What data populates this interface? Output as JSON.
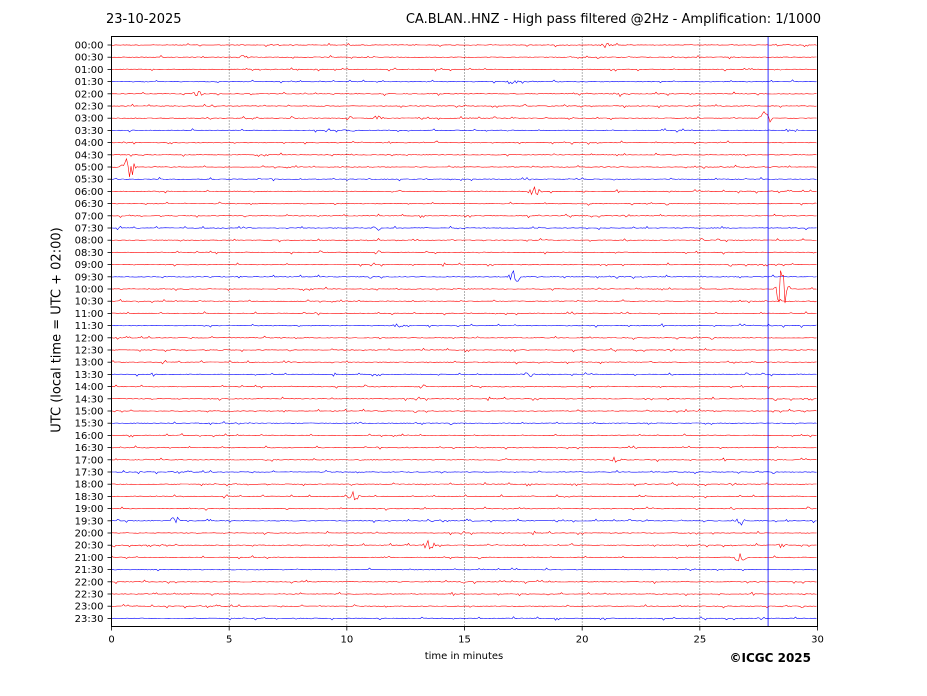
{
  "header": {
    "date": "23-10-2025",
    "title": "CA.BLAN..HNZ - High pass filtered @2Hz - Amplification: 1/1000"
  },
  "footer": {
    "copyright": "©ICGC 2025"
  },
  "colors": {
    "trace_red": "#ff0000",
    "trace_blue": "#0000ff",
    "frame": "#000000",
    "background": "#ffffff"
  },
  "chart_data": {
    "type": "line",
    "title": "CA.BLAN..HNZ - High pass filtered @2Hz - Amplification: 1/1000",
    "xlabel": "time in minutes",
    "ylabel": "UTC (local time = UTC + 02:00)",
    "xlim": [
      0,
      30
    ],
    "x_ticks": [
      0,
      5,
      10,
      15,
      20,
      25,
      30
    ],
    "vertical_gridlines": [
      5,
      10,
      15,
      20,
      25
    ],
    "grid": "vertical dotted",
    "y_ticks": [
      "00:00",
      "00:30",
      "01:00",
      "01:30",
      "02:00",
      "02:30",
      "03:00",
      "03:30",
      "04:00",
      "04:30",
      "05:00",
      "05:30",
      "06:00",
      "06:30",
      "07:00",
      "07:30",
      "08:00",
      "08:30",
      "09:00",
      "09:30",
      "10:00",
      "10:30",
      "11:00",
      "11:30",
      "12:00",
      "12:30",
      "13:00",
      "13:30",
      "14:00",
      "14:30",
      "15:00",
      "15:30",
      "16:00",
      "16:30",
      "17:00",
      "17:30",
      "18:00",
      "18:30",
      "19:00",
      "19:30",
      "20:00",
      "20:30",
      "21:00",
      "21:30",
      "22:00",
      "22:30",
      "23:00",
      "23:30"
    ],
    "trace_color_pattern": [
      "red",
      "red",
      "red",
      "blue"
    ],
    "events": [
      {
        "row": "00:00",
        "minute": 21.0,
        "amplitude": 0.4
      },
      {
        "row": "00:30",
        "minute": 5.6,
        "amplitude": 0.3
      },
      {
        "row": "01:30",
        "minute": 17.0,
        "amplitude": 0.5
      },
      {
        "row": "02:00",
        "minute": 3.7,
        "amplitude": 0.4
      },
      {
        "row": "02:00",
        "minute": 21.6,
        "amplitude": 0.4
      },
      {
        "row": "03:00",
        "minute": 11.3,
        "amplitude": 0.4
      },
      {
        "row": "03:00",
        "minute": 27.8,
        "amplitude": 1.2
      },
      {
        "row": "03:30",
        "minute": 10.1,
        "amplitude": 0.4
      },
      {
        "row": "05:00",
        "minute": 0.7,
        "amplitude": 2.5
      },
      {
        "row": "06:00",
        "minute": 18.0,
        "amplitude": 0.8
      },
      {
        "row": "07:30",
        "minute": 11.2,
        "amplitude": 0.6
      },
      {
        "row": "09:30",
        "minute": 17.1,
        "amplitude": 1.2
      },
      {
        "row": "10:00",
        "minute": 28.5,
        "amplitude": 3.5
      },
      {
        "row": "11:30",
        "minute": 12.2,
        "amplitude": 0.4
      },
      {
        "row": "13:30",
        "minute": 17.7,
        "amplitude": 0.5
      },
      {
        "row": "17:00",
        "minute": 21.4,
        "amplitude": 0.5
      },
      {
        "row": "18:30",
        "minute": 10.3,
        "amplitude": 0.8
      },
      {
        "row": "19:30",
        "minute": 2.7,
        "amplitude": 0.8
      },
      {
        "row": "19:30",
        "minute": 26.8,
        "amplitude": 0.7
      },
      {
        "row": "20:30",
        "minute": 13.5,
        "amplitude": 0.8
      },
      {
        "row": "20:30",
        "minute": 28.4,
        "amplitude": 0.5
      },
      {
        "row": "21:00",
        "minute": 26.7,
        "amplitude": 0.8
      }
    ],
    "vertical_line_minute": 27.9
  }
}
